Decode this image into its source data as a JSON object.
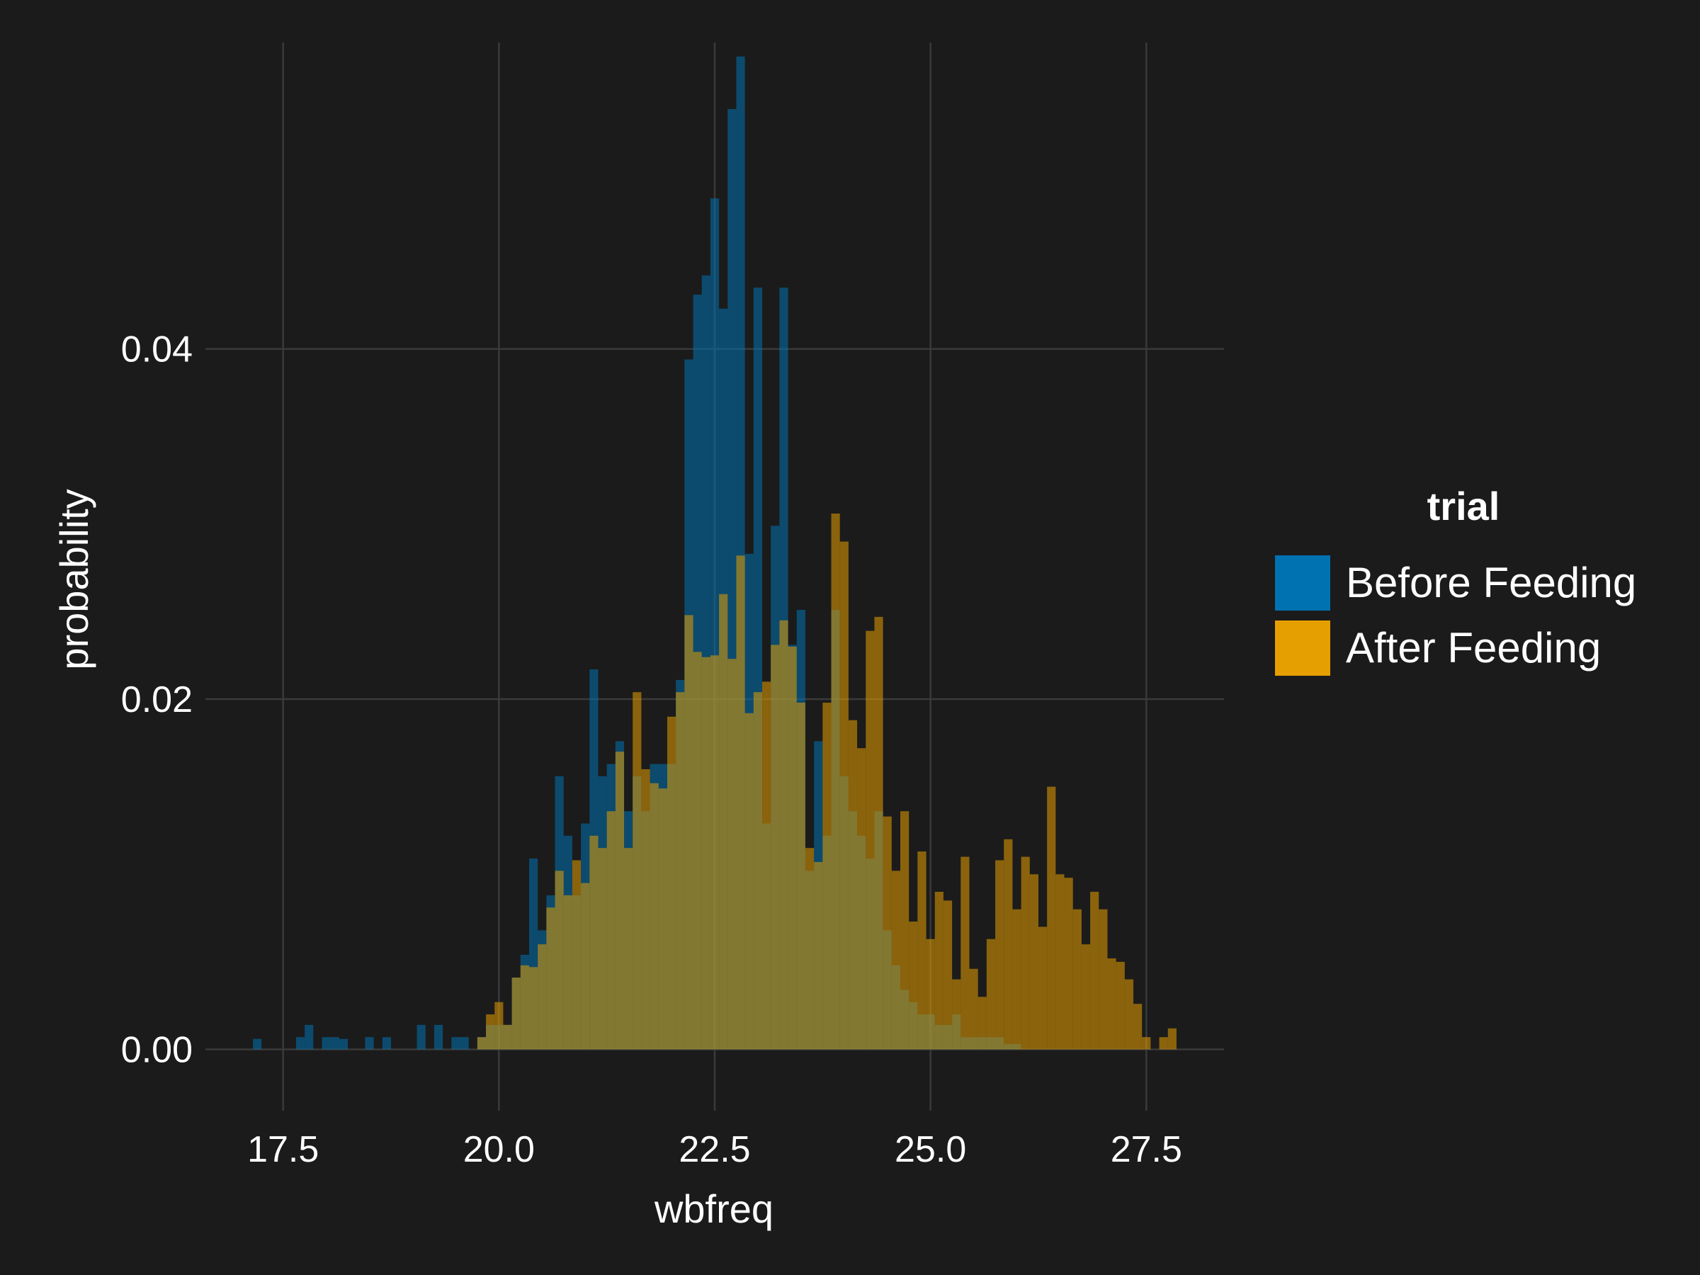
{
  "chart_data": {
    "type": "bar",
    "subtype": "overlapping-histogram",
    "xlabel": "wbfreq",
    "ylabel": "probability",
    "xlim": [
      16.6,
      28.4
    ],
    "ylim": [
      -0.0035,
      0.0575
    ],
    "x_ticks": [
      "17.5",
      "20.0",
      "22.5",
      "25.0",
      "27.5"
    ],
    "x_tick_values": [
      17.5,
      20.0,
      22.5,
      25.0,
      27.5
    ],
    "y_ticks": [
      "0.00",
      "0.02",
      "0.04"
    ],
    "y_tick_values": [
      0.0,
      0.02,
      0.04
    ],
    "grid": true,
    "legend_position": "right",
    "legend_title": "trial",
    "bin_width": 0.1,
    "series": [
      {
        "name": "Before Feeding",
        "color": "#0072B2",
        "points": [
          [
            17.2,
            0.0006
          ],
          [
            17.7,
            0.0007
          ],
          [
            17.8,
            0.0014
          ],
          [
            18.0,
            0.0007
          ],
          [
            18.1,
            0.0007
          ],
          [
            18.2,
            0.0006
          ],
          [
            18.5,
            0.0007
          ],
          [
            18.7,
            0.0007
          ],
          [
            19.1,
            0.0014
          ],
          [
            19.3,
            0.0014
          ],
          [
            19.5,
            0.0007
          ],
          [
            19.6,
            0.0007
          ],
          [
            19.8,
            0.0007
          ],
          [
            19.9,
            0.0014
          ],
          [
            20.0,
            0.0014
          ],
          [
            20.1,
            0.0014
          ],
          [
            20.2,
            0.0041
          ],
          [
            20.3,
            0.0054
          ],
          [
            20.4,
            0.0109
          ],
          [
            20.5,
            0.0068
          ],
          [
            20.6,
            0.0088
          ],
          [
            20.7,
            0.0156
          ],
          [
            20.8,
            0.0122
          ],
          [
            20.9,
            0.0088
          ],
          [
            21.0,
            0.0129
          ],
          [
            21.1,
            0.0217
          ],
          [
            21.2,
            0.0156
          ],
          [
            21.3,
            0.0163
          ],
          [
            21.4,
            0.0176
          ],
          [
            21.5,
            0.0136
          ],
          [
            21.6,
            0.0156
          ],
          [
            21.7,
            0.0136
          ],
          [
            21.8,
            0.0163
          ],
          [
            21.9,
            0.0163
          ],
          [
            22.0,
            0.0163
          ],
          [
            22.1,
            0.0211
          ],
          [
            22.2,
            0.0394
          ],
          [
            22.3,
            0.0431
          ],
          [
            22.4,
            0.0442
          ],
          [
            22.5,
            0.0486
          ],
          [
            22.6,
            0.0423
          ],
          [
            22.7,
            0.0537
          ],
          [
            22.8,
            0.0567
          ],
          [
            22.9,
            0.0283
          ],
          [
            23.0,
            0.0435
          ],
          [
            23.1,
            0.0129
          ],
          [
            23.2,
            0.0299
          ],
          [
            23.3,
            0.0435
          ],
          [
            23.4,
            0.0231
          ],
          [
            23.5,
            0.0251
          ],
          [
            23.6,
            0.0102
          ],
          [
            23.7,
            0.0176
          ],
          [
            23.8,
            0.0122
          ],
          [
            23.9,
            0.0251
          ],
          [
            24.0,
            0.0156
          ],
          [
            24.1,
            0.0136
          ],
          [
            24.2,
            0.0122
          ],
          [
            24.3,
            0.0109
          ],
          [
            24.4,
            0.0136
          ],
          [
            24.5,
            0.0068
          ],
          [
            24.6,
            0.0048
          ],
          [
            24.7,
            0.0034
          ],
          [
            24.8,
            0.0027
          ],
          [
            24.9,
            0.002
          ],
          [
            25.0,
            0.002
          ],
          [
            25.1,
            0.0014
          ],
          [
            25.2,
            0.0014
          ],
          [
            25.3,
            0.002
          ],
          [
            25.4,
            0.0007
          ],
          [
            25.5,
            0.0007
          ],
          [
            25.6,
            0.0007
          ],
          [
            25.7,
            0.0007
          ],
          [
            25.8,
            0.0007
          ],
          [
            25.9,
            0.0003
          ],
          [
            26.0,
            0.0003
          ]
        ]
      },
      {
        "name": "After Feeding",
        "color": "#E69F00",
        "points": [
          [
            19.8,
            0.0007
          ],
          [
            19.9,
            0.002
          ],
          [
            20.0,
            0.0027
          ],
          [
            20.1,
            0.0014
          ],
          [
            20.2,
            0.0041
          ],
          [
            20.3,
            0.0048
          ],
          [
            20.4,
            0.0047
          ],
          [
            20.5,
            0.006
          ],
          [
            20.6,
            0.0081
          ],
          [
            20.7,
            0.0102
          ],
          [
            20.8,
            0.0088
          ],
          [
            20.9,
            0.0108
          ],
          [
            21.0,
            0.0095
          ],
          [
            21.1,
            0.0122
          ],
          [
            21.2,
            0.0115
          ],
          [
            21.3,
            0.0136
          ],
          [
            21.4,
            0.017
          ],
          [
            21.5,
            0.0115
          ],
          [
            21.6,
            0.0204
          ],
          [
            21.7,
            0.016
          ],
          [
            21.8,
            0.0152
          ],
          [
            21.9,
            0.0149
          ],
          [
            22.0,
            0.019
          ],
          [
            22.1,
            0.0204
          ],
          [
            22.2,
            0.0248
          ],
          [
            22.3,
            0.0227
          ],
          [
            22.4,
            0.0224
          ],
          [
            22.5,
            0.0225
          ],
          [
            22.6,
            0.026
          ],
          [
            22.7,
            0.0223
          ],
          [
            22.8,
            0.0282
          ],
          [
            22.9,
            0.0192
          ],
          [
            23.0,
            0.0204
          ],
          [
            23.1,
            0.021
          ],
          [
            23.2,
            0.0231
          ],
          [
            23.3,
            0.0245
          ],
          [
            23.4,
            0.023
          ],
          [
            23.5,
            0.0198
          ],
          [
            23.6,
            0.0115
          ],
          [
            23.7,
            0.0107
          ],
          [
            23.8,
            0.0198
          ],
          [
            23.9,
            0.0306
          ],
          [
            24.0,
            0.029
          ],
          [
            24.1,
            0.0188
          ],
          [
            24.2,
            0.0172
          ],
          [
            24.3,
            0.0239
          ],
          [
            24.4,
            0.0247
          ],
          [
            24.5,
            0.0133
          ],
          [
            24.6,
            0.0102
          ],
          [
            24.7,
            0.0136
          ],
          [
            24.8,
            0.0073
          ],
          [
            24.9,
            0.0113
          ],
          [
            25.0,
            0.0063
          ],
          [
            25.1,
            0.009
          ],
          [
            25.2,
            0.0085
          ],
          [
            25.3,
            0.004
          ],
          [
            25.4,
            0.011
          ],
          [
            25.5,
            0.0046
          ],
          [
            25.6,
            0.003
          ],
          [
            25.7,
            0.0063
          ],
          [
            25.8,
            0.0108
          ],
          [
            25.9,
            0.012
          ],
          [
            26.0,
            0.008
          ],
          [
            26.1,
            0.011
          ],
          [
            26.2,
            0.01
          ],
          [
            26.3,
            0.007
          ],
          [
            26.4,
            0.015
          ],
          [
            26.5,
            0.01
          ],
          [
            26.6,
            0.0098
          ],
          [
            26.7,
            0.008
          ],
          [
            26.8,
            0.006
          ],
          [
            26.9,
            0.009
          ],
          [
            27.0,
            0.008
          ],
          [
            27.1,
            0.0052
          ],
          [
            27.2,
            0.005
          ],
          [
            27.3,
            0.004
          ],
          [
            27.4,
            0.0026
          ],
          [
            27.5,
            0.0007
          ],
          [
            27.7,
            0.0007
          ],
          [
            27.8,
            0.0012
          ]
        ]
      }
    ]
  }
}
